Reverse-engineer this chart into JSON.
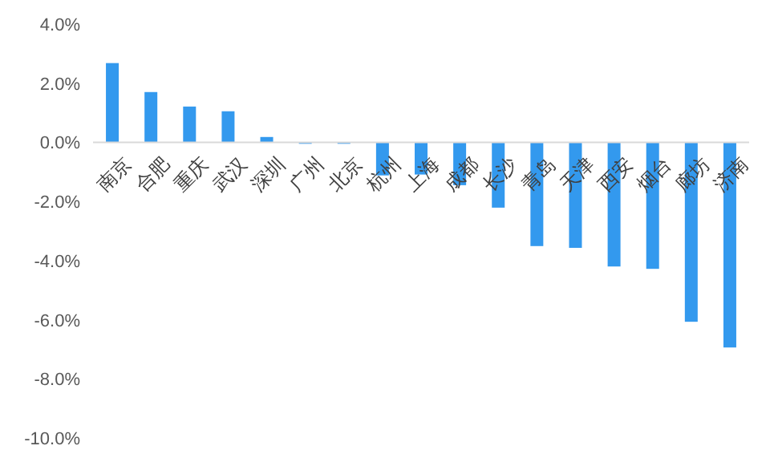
{
  "chart_data": {
    "type": "bar",
    "categories": [
      "南京",
      "合肥",
      "重庆",
      "武汉",
      "深圳",
      "广州",
      "北京",
      "杭州",
      "上海",
      "成都",
      "长沙",
      "青岛",
      "天津",
      "西安",
      "烟台",
      "廊坊",
      "济南"
    ],
    "values": [
      2.68,
      1.7,
      1.21,
      1.05,
      0.18,
      -0.05,
      -0.05,
      -1.12,
      -1.09,
      -1.45,
      -2.21,
      -3.51,
      -3.57,
      -4.2,
      -4.28,
      -6.07,
      -6.94
    ],
    "color": "#3399ee",
    "ylim": [
      -10,
      4
    ],
    "yticks": [
      {
        "value": 4,
        "label": "4.0%"
      },
      {
        "value": 2,
        "label": "2.0%"
      },
      {
        "value": 0,
        "label": "0.0%"
      },
      {
        "value": -2,
        "label": "-2.0%"
      },
      {
        "value": -4,
        "label": "-4.0%"
      },
      {
        "value": -6,
        "label": "-6.0%"
      },
      {
        "value": -8,
        "label": "-8.0%"
      },
      {
        "value": -10,
        "label": "-10.0%"
      }
    ],
    "grid": false
  }
}
